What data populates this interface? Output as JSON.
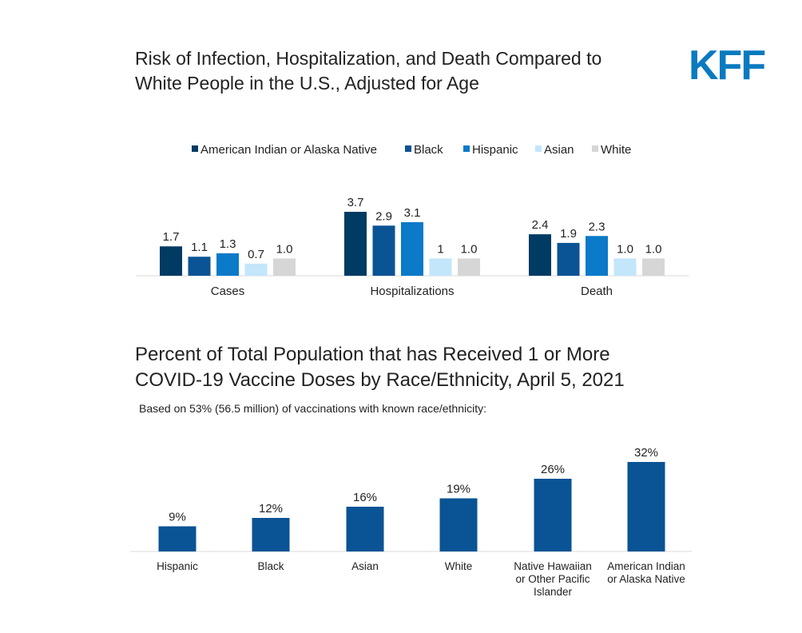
{
  "brand": {
    "logo_text": "KFF",
    "color": "#0a7ac0"
  },
  "chart_data": [
    {
      "type": "bar",
      "title": "Risk of Infection, Hospitalization, and Death Compared to White People in the U.S., Adjusted for Age",
      "title_lines": [
        "Risk of Infection, Hospitalization, and Death Compared to",
        "White People in the U.S., Adjusted for Age"
      ],
      "categories": [
        "Cases",
        "Hospitalizations",
        "Death"
      ],
      "series": [
        {
          "name": "American Indian or Alaska Native",
          "color": "#003b64",
          "values": [
            1.7,
            3.7,
            2.4
          ],
          "labels": [
            "1.7",
            "3.7",
            "2.4"
          ]
        },
        {
          "name": "Black",
          "color": "#0a5394",
          "values": [
            1.1,
            2.9,
            1.9
          ],
          "labels": [
            "1.1",
            "2.9",
            "1.9"
          ]
        },
        {
          "name": "Hispanic",
          "color": "#0a7ac9",
          "values": [
            1.3,
            3.1,
            2.3
          ],
          "labels": [
            "1.3",
            "3.1",
            "2.3"
          ]
        },
        {
          "name": "Asian",
          "color": "#c3e6fb",
          "values": [
            0.7,
            1.0,
            1.0
          ],
          "labels": [
            "0.7",
            "1",
            "1.0"
          ]
        },
        {
          "name": "White",
          "color": "#d6d6d6",
          "values": [
            1.0,
            1.0,
            1.0
          ],
          "labels": [
            "1.0",
            "1.0",
            "1.0"
          ]
        }
      ],
      "ylim": [
        0,
        3.7
      ],
      "legend_position": "top",
      "grid": false
    },
    {
      "type": "bar",
      "title": "Percent of Total Population that has Received 1 or More COVID-19 Vaccine Doses by Race/Ethnicity, April 5, 2021",
      "title_lines": [
        "Percent of Total Population that has Received 1 or More",
        "COVID-19 Vaccine Doses by Race/Ethnicity, April 5, 2021"
      ],
      "subtitle": "Based on 53% (56.5 million) of vaccinations with known race/ethnicity:",
      "categories": [
        "Hispanic",
        "Black",
        "Asian",
        "White",
        "Native Hawaiian or Other Pacific Islander",
        "American Indian or Alaska Native"
      ],
      "category_lines": [
        [
          "Hispanic"
        ],
        [
          "Black"
        ],
        [
          "Asian"
        ],
        [
          "White"
        ],
        [
          "Native Hawaiian",
          "or Other Pacific",
          "Islander"
        ],
        [
          "American Indian",
          "or Alaska Native"
        ]
      ],
      "values": [
        9,
        12,
        16,
        19,
        26,
        32
      ],
      "labels": [
        "9%",
        "12%",
        "16%",
        "19%",
        "26%",
        "32%"
      ],
      "color": "#0a5394",
      "ylim": [
        0,
        32
      ],
      "grid": false
    }
  ]
}
